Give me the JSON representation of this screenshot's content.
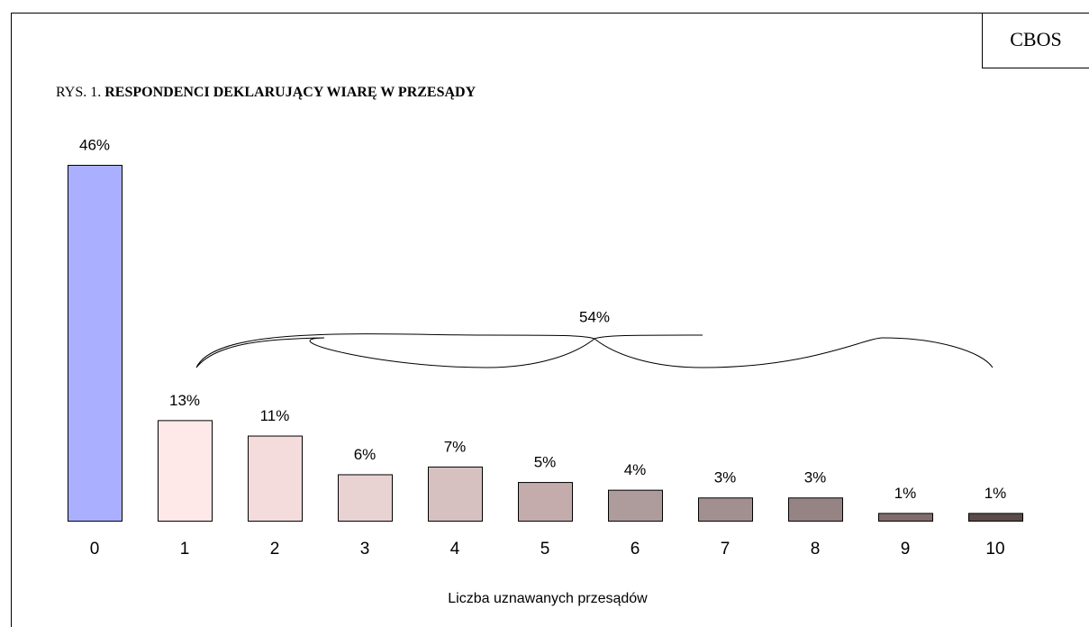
{
  "chart_data": {
    "type": "bar",
    "source": "CBOS",
    "figure_label": "RYS. 1.",
    "title": "RESPONDENCI DEKLARUJĄCY WIARĘ W PRZESĄDY",
    "x_label": "Liczba uznawanych przesądów",
    "annotation": "54%",
    "categories": [
      "0",
      "1",
      "2",
      "3",
      "4",
      "5",
      "6",
      "7",
      "8",
      "9",
      "10"
    ],
    "values": [
      46,
      13,
      11,
      6,
      7,
      5,
      4,
      3,
      3,
      1,
      1
    ],
    "value_labels": [
      "46%",
      "13%",
      "11%",
      "6%",
      "7%",
      "5%",
      "4%",
      "3%",
      "3%",
      "1%",
      "1%"
    ],
    "colors": [
      "#aab0ff",
      "#ffe8e8",
      "#f4dcdc",
      "#e8d2d2",
      "#d6c0c0",
      "#c4acac",
      "#ae9c9c",
      "#a29090",
      "#968484",
      "#826c6c",
      "#5a4a4a"
    ]
  }
}
